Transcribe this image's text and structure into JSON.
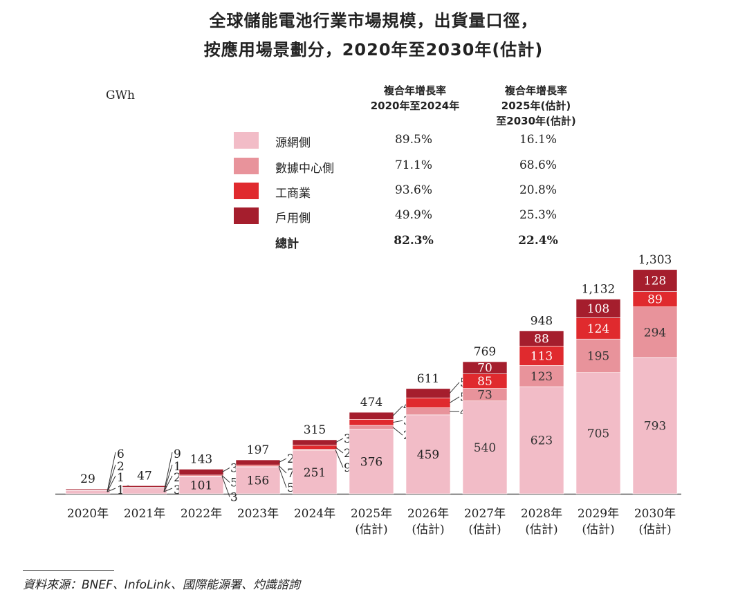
{
  "title": {
    "line1": "全球儲能電池行業市場規模，出貨量口徑，",
    "line2": "按應用場景劃分，2020年至2030年(估計)"
  },
  "unit": "GWh",
  "cagr_header": {
    "col1": [
      "複合年增長率",
      "2020年至2024年"
    ],
    "col2": [
      "複合年增長率",
      "2025年(估計)",
      "至2030年(估計)"
    ]
  },
  "legend": [
    {
      "name": "源網側",
      "cagr1": "89.5%",
      "cagr2": "16.1%",
      "color": "#f2bcc7"
    },
    {
      "name": "數據中心側",
      "cagr1": "71.1%",
      "cagr2": "68.6%",
      "color": "#e8939b"
    },
    {
      "name": "工商業",
      "cagr1": "93.6%",
      "cagr2": "20.8%",
      "color": "#e02a2e"
    },
    {
      "name": "戶用側",
      "cagr1": "49.9%",
      "cagr2": "25.3%",
      "color": "#a51e2d"
    }
  ],
  "total": {
    "name": "總計",
    "cagr1": "82.3%",
    "cagr2": "22.4%"
  },
  "chart_data": {
    "type": "bar",
    "stacked": true,
    "categories": [
      "2020年",
      "2021年",
      "2022年",
      "2023年",
      "2024年",
      "2025年",
      "2026年",
      "2027年",
      "2028年",
      "2029年",
      "2030年"
    ],
    "category_sub": [
      "",
      "",
      "",
      "",
      "",
      "(估計)",
      "(估計)",
      "(估計)",
      "(估計)",
      "(估計)",
      "(估計)"
    ],
    "series": [
      {
        "name": "源網側",
        "values": [
          19,
          35,
          101,
          156,
          251,
          376,
          459,
          540,
          623,
          705,
          793
        ]
      },
      {
        "name": "數據中心側",
        "values": [
          1,
          2,
          3,
          5,
          9,
          22,
          41,
          73,
          123,
          195,
          294
        ]
      },
      {
        "name": "工商業",
        "values": [
          2,
          1,
          5,
          7,
          22,
          35,
          57,
          85,
          113,
          124,
          89
        ]
      },
      {
        "name": "戶用側",
        "values": [
          6,
          9,
          34,
          29,
          32,
          41,
          55,
          70,
          88,
          108,
          128
        ]
      }
    ],
    "totals": [
      "29",
      "47",
      "143",
      "197",
      "315",
      "474",
      "611",
      "769",
      "948",
      "1,132",
      "1,303"
    ],
    "ylabel": "GWh",
    "ylim": [
      0,
      1303
    ]
  },
  "source": "資料來源：BNEF、InfoLink、國際能源署、灼識諮詢"
}
